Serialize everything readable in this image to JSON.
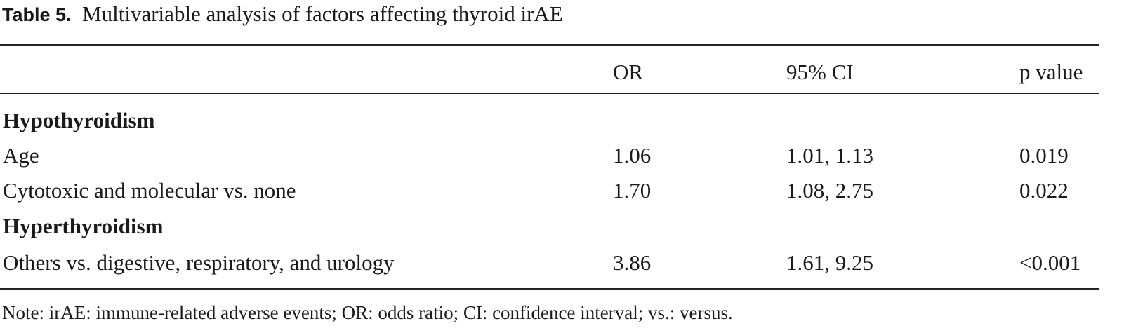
{
  "caption": {
    "label": "Table 5.",
    "text": "Multivariable analysis of factors affecting thyroid irAE"
  },
  "table": {
    "columns": [
      "OR",
      "95% CI",
      "p value"
    ],
    "sections": [
      {
        "title": "Hypothyroidism",
        "rows": [
          [
            "Age",
            "1.06",
            "1.01, 1.13",
            "0.019"
          ],
          [
            "Cytotoxic and molecular vs. none",
            "1.70",
            "1.08, 2.75",
            "0.022"
          ]
        ]
      },
      {
        "title": "Hyperthyroidism",
        "rows": [
          [
            "Others vs. digestive, respiratory, and urology",
            "3.86",
            "1.61, 9.25",
            "<0.001"
          ]
        ]
      }
    ]
  },
  "note": "Note: irAE: immune-related adverse events; OR: odds ratio; CI: confidence interval; vs.: versus."
}
